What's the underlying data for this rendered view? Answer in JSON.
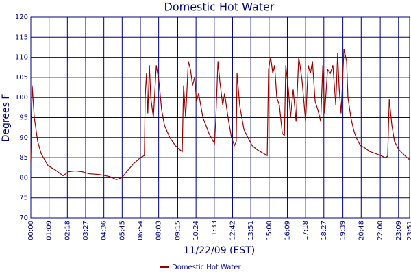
{
  "chart_data": {
    "type": "line",
    "title": "Domestic Hot Water",
    "xlabel": "11/22/09 (EST)",
    "ylabel": "Degrees F",
    "x": [
      0,
      5,
      13,
      26,
      39,
      65,
      91,
      122,
      142,
      168,
      194,
      220,
      259,
      298,
      323,
      344,
      362,
      388,
      414,
      429,
      432,
      437,
      442,
      448,
      453,
      463,
      474,
      484,
      494,
      505,
      525,
      546,
      562,
      572,
      577,
      585,
      595,
      603,
      611,
      619,
      626,
      634,
      650,
      673,
      694,
      699,
      707,
      714,
      725,
      732,
      745,
      758,
      769,
      776,
      779,
      789,
      805,
      820,
      836,
      854,
      880,
      893,
      898,
      906,
      914,
      921,
      929,
      939,
      950,
      958,
      963,
      973,
      981,
      991,
      1002,
      1012,
      1017,
      1025,
      1038,
      1048,
      1056,
      1064,
      1074,
      1084,
      1095,
      1103,
      1110,
      1121,
      1131,
      1141,
      1152,
      1159,
      1165,
      1172,
      1183,
      1193,
      1198,
      1209,
      1219,
      1229,
      1245,
      1260,
      1281,
      1302,
      1322,
      1338,
      1348,
      1354,
      1364,
      1374,
      1390,
      1405,
      1421,
      1431
    ],
    "series": [
      {
        "name": "Domestic Hot Water",
        "color": "#990000",
        "values": [
          84,
          103,
          95,
          89,
          86,
          83,
          82,
          80.5,
          81.5,
          81.7,
          81.5,
          81,
          80.8,
          80.3,
          79.5,
          80,
          81.5,
          83.5,
          85,
          85.5,
          100,
          106,
          96,
          108,
          100,
          95,
          108,
          104,
          97,
          93,
          90,
          88,
          87,
          86.5,
          103,
          95,
          109,
          107,
          103,
          105,
          99,
          101,
          95,
          91,
          88.5,
          95,
          109,
          104,
          98,
          101,
          95,
          90,
          88,
          89,
          106,
          98,
          92,
          90,
          88,
          87,
          86,
          85.5,
          107,
          110,
          106,
          108,
          100,
          98,
          91,
          90.5,
          108,
          102,
          95,
          102,
          94,
          110,
          108,
          104,
          94,
          108,
          106,
          109,
          99,
          97,
          94,
          108,
          96,
          107,
          106,
          108,
          98,
          111,
          102,
          96,
          112,
          109,
          100,
          95,
          92,
          90,
          88,
          87.5,
          86.5,
          86,
          85.5,
          85,
          85.3,
          99.5,
          93,
          89,
          87,
          86,
          85,
          84.5
        ]
      }
    ],
    "xlim": [
      0,
      1431
    ],
    "xticks": [
      {
        "value": 0,
        "label": "00:00"
      },
      {
        "value": 69,
        "label": "01:09"
      },
      {
        "value": 138,
        "label": "02:18"
      },
      {
        "value": 207,
        "label": "03:27"
      },
      {
        "value": 276,
        "label": "04:36"
      },
      {
        "value": 345,
        "label": "05:45"
      },
      {
        "value": 414,
        "label": "06:54"
      },
      {
        "value": 483,
        "label": "08:03"
      },
      {
        "value": 555,
        "label": "09:15"
      },
      {
        "value": 624,
        "label": "10:24"
      },
      {
        "value": 693,
        "label": "11:33"
      },
      {
        "value": 762,
        "label": "12:42"
      },
      {
        "value": 831,
        "label": "13:51"
      },
      {
        "value": 900,
        "label": "15:00"
      },
      {
        "value": 969,
        "label": "16:09"
      },
      {
        "value": 1038,
        "label": "17:18"
      },
      {
        "value": 1107,
        "label": "18:27"
      },
      {
        "value": 1179,
        "label": "19:39"
      },
      {
        "value": 1248,
        "label": "20:48"
      },
      {
        "value": 1320,
        "label": "22:00"
      },
      {
        "value": 1389,
        "label": "23:09"
      },
      {
        "value": 1431,
        "label": "23:51"
      }
    ],
    "ylim": [
      70,
      120
    ],
    "yticks": [
      70,
      75,
      80,
      85,
      90,
      95,
      100,
      105,
      110,
      115,
      120
    ],
    "grid": true
  }
}
